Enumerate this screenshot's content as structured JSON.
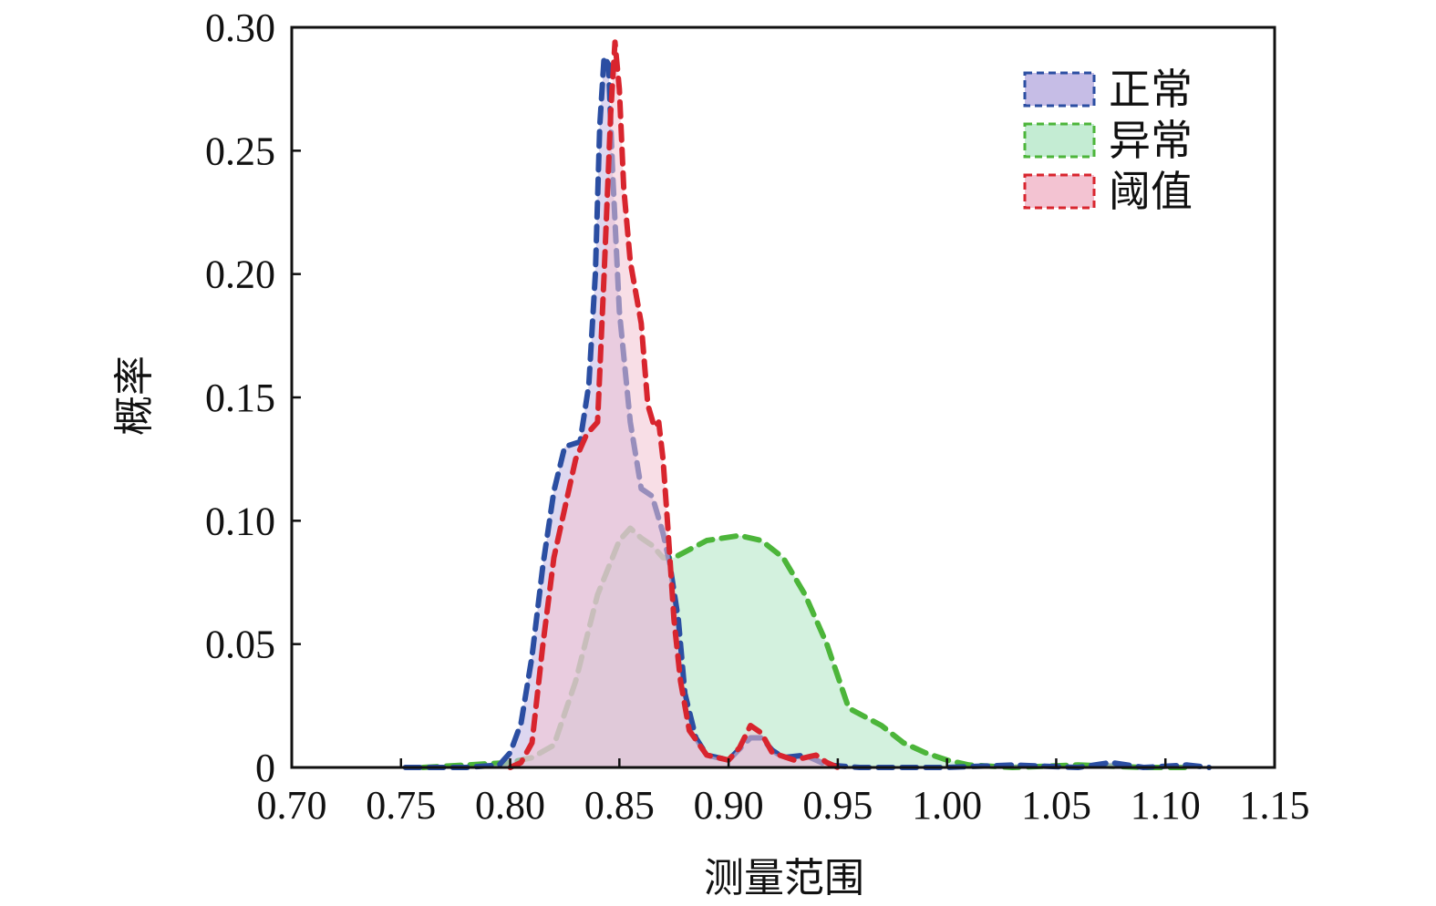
{
  "chart_data": {
    "type": "area",
    "title": "",
    "xlabel": "测量范围",
    "ylabel": "概率",
    "xlim": [
      0.7,
      1.15
    ],
    "ylim": [
      0,
      0.3
    ],
    "x_ticks": [
      0.7,
      0.75,
      0.8,
      0.85,
      0.9,
      0.95,
      1.0,
      1.05,
      1.1,
      1.15
    ],
    "x_tick_labels": [
      "0.70",
      "0.75",
      "0.80",
      "0.85",
      "0.90",
      "0.95",
      "1.00",
      "1.05",
      "1.10",
      "1.15"
    ],
    "y_ticks": [
      0,
      0.05,
      0.1,
      0.15,
      0.2,
      0.25,
      0.3
    ],
    "y_tick_labels": [
      "0",
      "0.05",
      "0.10",
      "0.15",
      "0.20",
      "0.25",
      "0.30"
    ],
    "grid": false,
    "legend_position": "top-right",
    "series": [
      {
        "name": "正常",
        "line_color": "#2b4ea2",
        "fill_color": "#c6bde6",
        "points": [
          [
            0.752,
            0.0
          ],
          [
            0.78,
            0.0
          ],
          [
            0.795,
            0.001
          ],
          [
            0.8,
            0.006
          ],
          [
            0.805,
            0.018
          ],
          [
            0.81,
            0.045
          ],
          [
            0.815,
            0.082
          ],
          [
            0.82,
            0.112
          ],
          [
            0.825,
            0.13
          ],
          [
            0.832,
            0.132
          ],
          [
            0.836,
            0.155
          ],
          [
            0.839,
            0.2
          ],
          [
            0.841,
            0.26
          ],
          [
            0.843,
            0.288
          ],
          [
            0.845,
            0.285
          ],
          [
            0.847,
            0.24
          ],
          [
            0.85,
            0.185
          ],
          [
            0.855,
            0.14
          ],
          [
            0.86,
            0.113
          ],
          [
            0.865,
            0.11
          ],
          [
            0.87,
            0.095
          ],
          [
            0.873,
            0.083
          ],
          [
            0.877,
            0.06
          ],
          [
            0.88,
            0.03
          ],
          [
            0.885,
            0.012
          ],
          [
            0.89,
            0.005
          ],
          [
            0.9,
            0.003
          ],
          [
            0.91,
            0.012
          ],
          [
            0.915,
            0.012
          ],
          [
            0.92,
            0.007
          ],
          [
            0.925,
            0.004
          ],
          [
            0.935,
            0.005
          ],
          [
            0.945,
            0.001
          ],
          [
            0.96,
            0.0
          ],
          [
            1.0,
            0.0
          ],
          [
            1.03,
            0.001
          ],
          [
            1.06,
            0.0
          ],
          [
            1.075,
            0.002
          ],
          [
            1.09,
            0.0
          ],
          [
            1.11,
            0.001
          ],
          [
            1.12,
            0.0
          ]
        ]
      },
      {
        "name": "异常",
        "line_color": "#4cb53a",
        "fill_color": "#c4ecd3",
        "points": [
          [
            0.76,
            0.0
          ],
          [
            0.78,
            0.001
          ],
          [
            0.8,
            0.002
          ],
          [
            0.81,
            0.004
          ],
          [
            0.82,
            0.009
          ],
          [
            0.83,
            0.035
          ],
          [
            0.84,
            0.07
          ],
          [
            0.85,
            0.092
          ],
          [
            0.855,
            0.097
          ],
          [
            0.86,
            0.093
          ],
          [
            0.865,
            0.09
          ],
          [
            0.87,
            0.085
          ],
          [
            0.875,
            0.085
          ],
          [
            0.89,
            0.092
          ],
          [
            0.905,
            0.094
          ],
          [
            0.915,
            0.092
          ],
          [
            0.925,
            0.085
          ],
          [
            0.935,
            0.07
          ],
          [
            0.945,
            0.05
          ],
          [
            0.955,
            0.024
          ],
          [
            0.97,
            0.017
          ],
          [
            0.98,
            0.01
          ],
          [
            0.99,
            0.006
          ],
          [
            1.0,
            0.003
          ],
          [
            1.01,
            0.001
          ],
          [
            1.03,
            0.0
          ],
          [
            1.06,
            0.001
          ],
          [
            1.09,
            0.0
          ],
          [
            1.11,
            0.0
          ]
        ]
      },
      {
        "name": "阈值",
        "line_color": "#d8252e",
        "fill_color": "#f3c3d2",
        "points": [
          [
            0.8,
            0.0
          ],
          [
            0.805,
            0.002
          ],
          [
            0.81,
            0.01
          ],
          [
            0.815,
            0.05
          ],
          [
            0.82,
            0.085
          ],
          [
            0.825,
            0.105
          ],
          [
            0.83,
            0.125
          ],
          [
            0.835,
            0.135
          ],
          [
            0.84,
            0.14
          ],
          [
            0.843,
            0.2
          ],
          [
            0.846,
            0.265
          ],
          [
            0.848,
            0.294
          ],
          [
            0.85,
            0.275
          ],
          [
            0.852,
            0.235
          ],
          [
            0.855,
            0.205
          ],
          [
            0.86,
            0.18
          ],
          [
            0.863,
            0.147
          ],
          [
            0.866,
            0.138
          ],
          [
            0.868,
            0.14
          ],
          [
            0.87,
            0.125
          ],
          [
            0.872,
            0.1
          ],
          [
            0.875,
            0.06
          ],
          [
            0.878,
            0.035
          ],
          [
            0.882,
            0.015
          ],
          [
            0.89,
            0.005
          ],
          [
            0.9,
            0.003
          ],
          [
            0.905,
            0.008
          ],
          [
            0.91,
            0.017
          ],
          [
            0.915,
            0.014
          ],
          [
            0.92,
            0.006
          ],
          [
            0.93,
            0.003
          ],
          [
            0.94,
            0.005
          ],
          [
            0.945,
            0.002
          ],
          [
            0.95,
            0.0
          ]
        ]
      }
    ]
  }
}
